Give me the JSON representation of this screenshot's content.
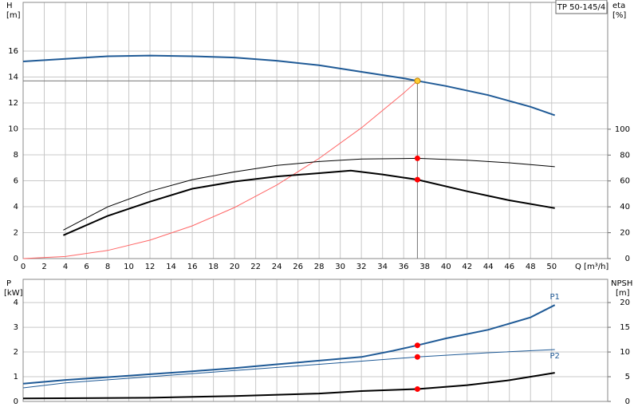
{
  "chart_data": [
    {
      "type": "line",
      "ylabel": "H",
      "yunit": "[m]",
      "y2label": "eta",
      "y2unit": "[%]",
      "xlabel": "Q [m³/h]",
      "title": "TP 50-145/4",
      "xlim": [
        0,
        55.3
      ],
      "xticks": [
        0,
        2,
        4,
        6,
        8,
        10,
        12,
        14,
        16,
        18,
        20,
        22,
        24,
        26,
        28,
        30,
        32,
        34,
        36,
        38,
        40,
        42,
        44,
        46,
        48,
        50
      ],
      "ylim": [
        0,
        19.75
      ],
      "yticks": [
        0,
        2,
        4,
        6,
        8,
        10,
        12,
        14,
        16
      ],
      "y2lim": [
        0,
        198
      ],
      "y2ticks": [
        0,
        20,
        40,
        60,
        80,
        100
      ],
      "grid": true,
      "show_xtick_labels": true,
      "duty_x": 37.3,
      "series": [
        {
          "color": "#1f5a96",
          "style": "thick",
          "marker": "#ffcc33",
          "x": [
            0,
            4,
            8,
            12,
            16,
            20,
            24,
            28,
            32,
            36,
            37.3,
            40,
            44,
            48,
            50.3
          ],
          "values": [
            15.2,
            15.4,
            15.6,
            15.65,
            15.6,
            15.5,
            15.25,
            14.9,
            14.4,
            13.9,
            13.7,
            13.3,
            12.6,
            11.7,
            11.05
          ]
        },
        {
          "color": "#ff6666",
          "style": "thin",
          "x": [
            0,
            4,
            8,
            12,
            16,
            20,
            24,
            28,
            32,
            36,
            37.3
          ],
          "values": [
            0,
            0.16,
            0.63,
            1.42,
            2.52,
            3.94,
            5.67,
            7.72,
            10.08,
            12.76,
            13.7
          ]
        },
        {
          "color": "#000000",
          "style": "thin",
          "axis": "y2",
          "marker": "#ff0000",
          "x": [
            3.8,
            8,
            12,
            16,
            20,
            24,
            28,
            32,
            37.3,
            42,
            46,
            50.3
          ],
          "values": [
            22,
            40,
            52,
            61,
            67,
            72,
            75,
            77,
            77.5,
            76,
            74,
            71
          ]
        },
        {
          "color": "#000000",
          "style": "thick",
          "axis": "y2",
          "marker": "#ff0000",
          "x": [
            3.8,
            8,
            12,
            16,
            20,
            24,
            28,
            31,
            34,
            37.3,
            42,
            46,
            50.3
          ],
          "values": [
            18,
            33,
            44,
            54,
            59.5,
            63.5,
            66,
            68,
            65,
            61,
            52,
            45,
            39
          ]
        }
      ]
    },
    {
      "type": "line",
      "ylabel": "P",
      "yunit": "[kW]",
      "y2label": "NPSH",
      "y2unit": "[m]",
      "xlim": [
        0,
        55.3
      ],
      "xticks": [
        0,
        2,
        4,
        6,
        8,
        10,
        12,
        14,
        16,
        18,
        20,
        22,
        24,
        26,
        28,
        30,
        32,
        34,
        36,
        38,
        40,
        42,
        44,
        46,
        48,
        50
      ],
      "ylim": [
        0,
        4.94
      ],
      "yticks": [
        0,
        1,
        2,
        3,
        4
      ],
      "y2lim": [
        0,
        24.7
      ],
      "y2ticks": [
        0,
        5,
        10,
        15,
        20
      ],
      "grid": true,
      "show_xtick_labels": false,
      "duty_x": 37.3,
      "series": [
        {
          "name": "P1",
          "color": "#1f5a96",
          "style": "thick",
          "marker": "#ff0000",
          "x": [
            0,
            4,
            8,
            12,
            16,
            20,
            24,
            28,
            32,
            35,
            37.3,
            40,
            44,
            48,
            50.3
          ],
          "values": [
            0.72,
            0.87,
            0.98,
            1.1,
            1.22,
            1.35,
            1.5,
            1.65,
            1.8,
            2.05,
            2.27,
            2.55,
            2.9,
            3.4,
            3.9
          ]
        },
        {
          "name": "P2",
          "color": "#1f5a96",
          "style": "thin",
          "marker": "#ff0000",
          "x": [
            0,
            4,
            12,
            20,
            28,
            37.3,
            44,
            50.3
          ],
          "values": [
            0.55,
            0.75,
            1.0,
            1.25,
            1.5,
            1.8,
            1.97,
            2.1
          ]
        },
        {
          "color": "#000000",
          "style": "thick",
          "axis": "y2",
          "marker": "#ff0000",
          "x": [
            0,
            3.8,
            12,
            20,
            28,
            32,
            37.3,
            42,
            46,
            50.3
          ],
          "values": [
            0.6,
            0.65,
            0.75,
            1.1,
            1.6,
            2.1,
            2.5,
            3.3,
            4.3,
            5.8
          ]
        }
      ]
    }
  ]
}
